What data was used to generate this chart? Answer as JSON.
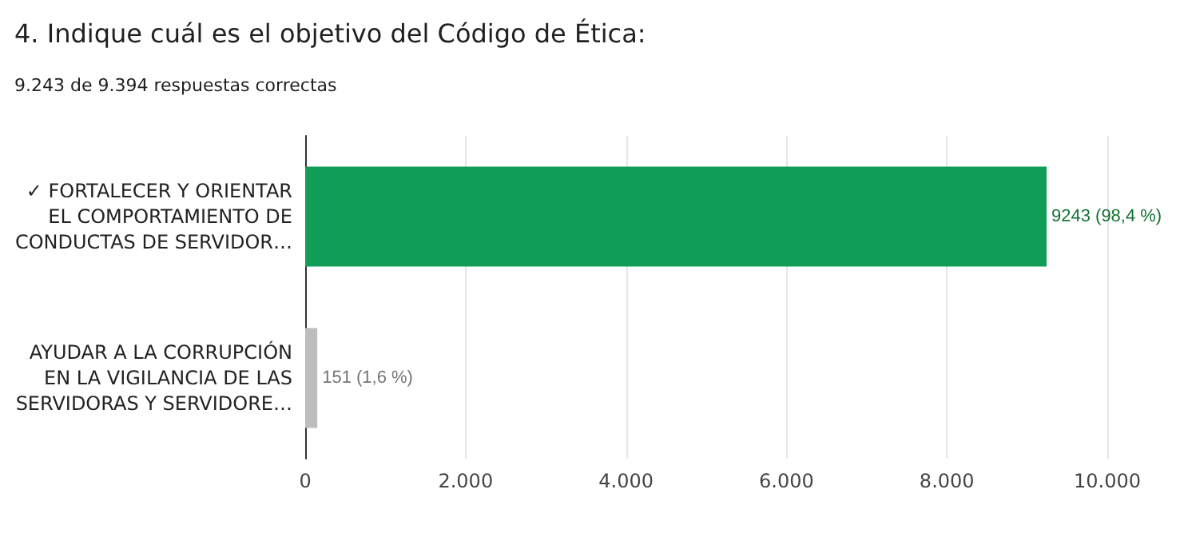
{
  "chart_data": {
    "type": "bar",
    "orientation": "horizontal",
    "title": "4. Indique cuál es el objetivo del Código de Ética:",
    "subtitle": "9.243 de 9.394 respuestas correctas",
    "categories": [
      "✓ FORTALECER Y ORIENTAR\nEL COMPORTAMIENTO DE\nCONDUCTAS DE SERVIDOR…",
      "AYUDAR A LA CORRUPCIÓN\nEN LA VIGILANCIA DE LAS\nSERVIDORAS Y SERVIDORE…"
    ],
    "values": [
      9243,
      151
    ],
    "colors": [
      "#0f9d58",
      "#bdbdbd"
    ],
    "value_labels": [
      "9243 (98,4 %)",
      "151 (1,6 %)"
    ],
    "xlim": [
      0,
      10000
    ],
    "xticks": [
      {
        "value": 0,
        "label": "0"
      },
      {
        "value": 2000,
        "label": "2.000"
      },
      {
        "value": 4000,
        "label": "4.000"
      },
      {
        "value": 6000,
        "label": "6.000"
      },
      {
        "value": 8000,
        "label": "8.000"
      },
      {
        "value": 10000,
        "label": "10.000"
      }
    ],
    "grid": "x"
  }
}
